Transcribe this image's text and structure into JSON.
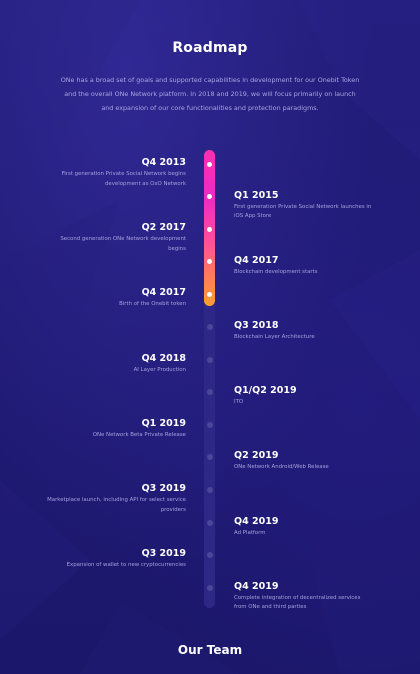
{
  "roadmap": {
    "title": "Roadmap",
    "intro": "ONe has a broad set of goals and supported capabilities in development for our Onebit Token and the overall ONe Network platform. In 2018 and 2019, we will focus primarily on launch and expansion of our core functionalities and protection paradigms.",
    "milestones": [
      {
        "date": "Q4 2013",
        "desc": "First generation Private Social Network begins development as OxO Network",
        "side": "left",
        "active": true
      },
      {
        "date": "Q1 2015",
        "desc": "First generation Private Social Network launches in iOS App Store",
        "side": "right",
        "active": true
      },
      {
        "date": "Q2 2017",
        "desc": "Second generation ONe Network development begins",
        "side": "left",
        "active": true
      },
      {
        "date": "Q4 2017",
        "desc": "Blockchain development starts",
        "side": "right",
        "active": true
      },
      {
        "date": "Q4 2017",
        "desc": "Birth of the Onebit token",
        "side": "left",
        "active": true
      },
      {
        "date": "Q3 2018",
        "desc": "Blockchain Layer Architecture",
        "side": "right",
        "active": false
      },
      {
        "date": "Q4 2018",
        "desc": "AI Layer Production",
        "side": "left",
        "active": false
      },
      {
        "date": "Q1/Q2 2019",
        "desc": "ITO",
        "side": "right",
        "active": false
      },
      {
        "date": "Q1 2019",
        "desc": "ONe Network Beta Private Release",
        "side": "left",
        "active": false
      },
      {
        "date": "Q2 2019",
        "desc": "ONe Network Android/Web Release",
        "side": "right",
        "active": false
      },
      {
        "date": "Q3 2019",
        "desc": "Marketplace launch, including API for select service providers",
        "side": "left",
        "active": false
      },
      {
        "date": "Q4 2019",
        "desc": "Ad Platform",
        "side": "right",
        "active": false
      },
      {
        "date": "Q3 2019",
        "desc": "Expansion of wallet to new cryptocurrencies",
        "side": "left",
        "active": false
      },
      {
        "date": "Q4 2019",
        "desc": "Complete integration of decentralized services from ONe and third parties",
        "side": "right",
        "active": false
      }
    ]
  },
  "team": {
    "title": "Our Team"
  },
  "colors": {
    "background": "#1d1a6e",
    "progress_start": "#ff2fb0",
    "progress_end": "#ffa02c",
    "muted_text": "#a6a2dc"
  }
}
